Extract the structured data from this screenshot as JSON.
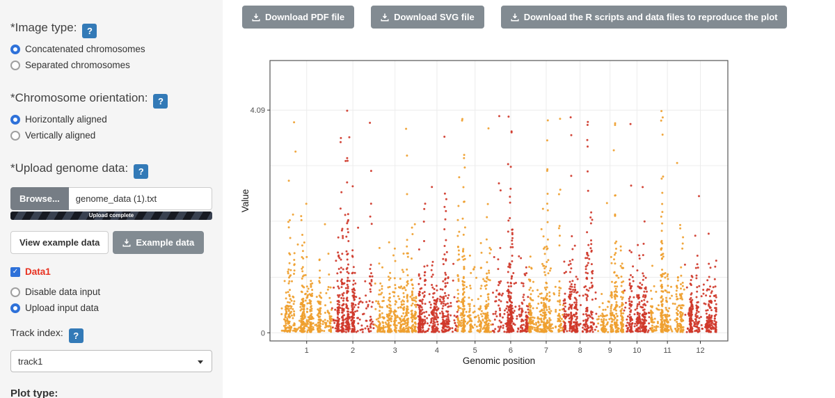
{
  "theme": {
    "accent_blue": "#337ab7",
    "radio_blue": "#2e71d9",
    "button_gray": "#828b92",
    "sidebar_bg": "#f5f5f5",
    "data1_red": "#e8301f"
  },
  "header": {
    "download_pdf": "Download PDF file",
    "download_svg": "Download SVG file",
    "download_scripts": "Download the R scripts and data files to reproduce the plot"
  },
  "icons": {
    "download": "download-arrow-into-tray",
    "help": "question-mark",
    "caret": "caret-down"
  },
  "sidebar": {
    "image_type": {
      "label": "*Image type:",
      "help": "?",
      "options": [
        "Concatenated chromosomes",
        "Separated chromosomes"
      ],
      "selected": "Concatenated chromosomes"
    },
    "orientation": {
      "label": "*Chromosome orientation:",
      "help": "?",
      "options": [
        "Horizontally aligned",
        "Vertically aligned"
      ],
      "selected": "Horizontally aligned"
    },
    "upload": {
      "label": "*Upload genome data:",
      "help": "?",
      "browse": "Browse...",
      "filename": "genome_data (1).txt",
      "progress": "Upload complete"
    },
    "example": {
      "view": "View example data",
      "download": "Example data"
    },
    "data1": {
      "label": "Data1",
      "checked": true,
      "check_glyph": "✓"
    },
    "input_mode": {
      "options": [
        "Disable data input",
        "Upload input data"
      ],
      "selected": "Upload input data"
    },
    "track": {
      "label": "Track index:",
      "help": "?",
      "value": "track1"
    },
    "plot_type_label": "Plot type:"
  },
  "chart_data": {
    "type": "scatter",
    "title": "",
    "xlabel": "Genomic position",
    "ylabel": "Value",
    "x_tick_labels": [
      "1",
      "2",
      "3",
      "4",
      "5",
      "6",
      "7",
      "8",
      "9",
      "10",
      "11",
      "12"
    ],
    "y_ticks": [
      {
        "value": 0,
        "label": "0"
      },
      {
        "value": 4.09,
        "label": "4.09"
      }
    ],
    "ylim": [
      -0.15,
      5.0
    ],
    "h_gridlines": [
      0,
      1.02,
      2.05,
      3.07,
      4.09
    ],
    "chromosome_lengths_mb": [
      43.3,
      35.9,
      36.4,
      35.5,
      29.9,
      31.2,
      29.7,
      28.4,
      23.0,
      23.2,
      29.0,
      27.5
    ],
    "point_colors_alternating": [
      "#EFA02F",
      "#CF382A"
    ],
    "total_points": 4300,
    "value_range_observed": [
      0,
      4.09
    ],
    "seed": 11,
    "legend": "none",
    "description": "Manhattan-style scatter plot of Value vs concatenated genomic position; 12 chromosomes colored alternately orange and red; points densely packed below ~1.5 with sparse vertical peak clusters reaching up to 4.09; x ticks mark chromosome midpoints; light gray gridlines; dark gray panel border"
  }
}
